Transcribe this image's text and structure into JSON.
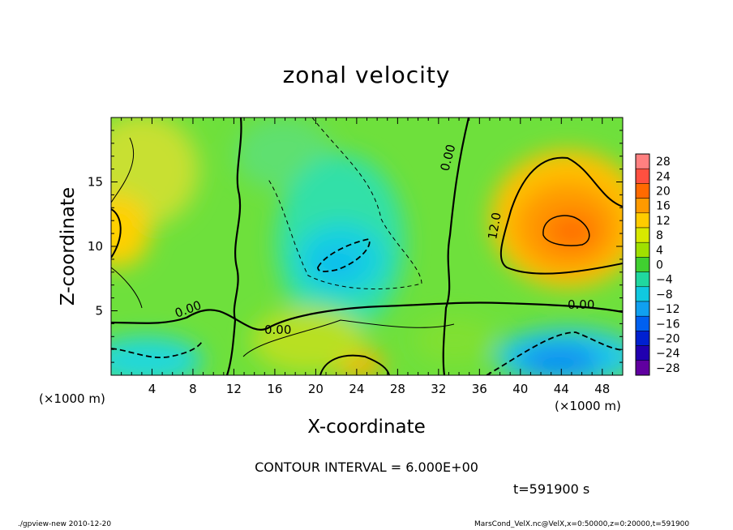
{
  "chart_data": {
    "type": "heatmap",
    "title": "zonal velocity",
    "xlabel": "X-coordinate",
    "ylabel": "Z-coordinate",
    "x_unit_label": "(×1000 m)",
    "y_unit_label": "(×1000 m)",
    "xlim": [
      0,
      50
    ],
    "ylim": [
      0,
      20
    ],
    "x_ticks": [
      4,
      8,
      12,
      16,
      20,
      24,
      28,
      32,
      36,
      40,
      44,
      48
    ],
    "y_ticks": [
      5,
      10,
      15
    ],
    "colorbar": {
      "levels": [
        28,
        24,
        20,
        16,
        12,
        8,
        4,
        0,
        -4,
        -8,
        -12,
        -16,
        -20,
        -24,
        -28
      ],
      "labels": [
        "28",
        "24",
        "20",
        "16",
        "12",
        "8",
        "4",
        "0",
        "-4",
        "-8",
        "-12",
        "-16",
        "-20",
        "-24",
        "-28"
      ],
      "colors": [
        "#ff8080",
        "#ff5040",
        "#ff6a00",
        "#ff9a00",
        "#ffcc00",
        "#d8e800",
        "#a0e000",
        "#40d030",
        "#20d8a0",
        "#10c8e0",
        "#10a0f0",
        "#0060f0",
        "#0020d0",
        "#2000b0",
        "#6000a0"
      ]
    },
    "contour_labels": [
      "0.00",
      "0.00",
      "0.00",
      "0.00",
      "12.0"
    ],
    "contour_interval": "CONTOUR INTERVAL = 6.000E+00",
    "time_label": "t=591900 s",
    "approx_field_features": [
      {
        "region": "upper-right jet core",
        "x": 44,
        "z": 11,
        "value": 18
      },
      {
        "region": "upper-left",
        "x": 0,
        "z": 11,
        "value": 12
      },
      {
        "region": "mid negative core",
        "x": 23,
        "z": 9,
        "value": -10
      },
      {
        "region": "lower-right negative",
        "x": 44,
        "z": 1,
        "value": -14
      },
      {
        "region": "lower-left negative",
        "x": 2,
        "z": 1.5,
        "value": -10
      },
      {
        "region": "bottom positive",
        "x": 25,
        "z": 0.8,
        "value": 14
      }
    ]
  },
  "footer": {
    "left": "./gpview-new  2010-12-20",
    "right": "MarsCond_VelX.nc@VelX,x=0:50000,z=0:20000,t=591900"
  }
}
